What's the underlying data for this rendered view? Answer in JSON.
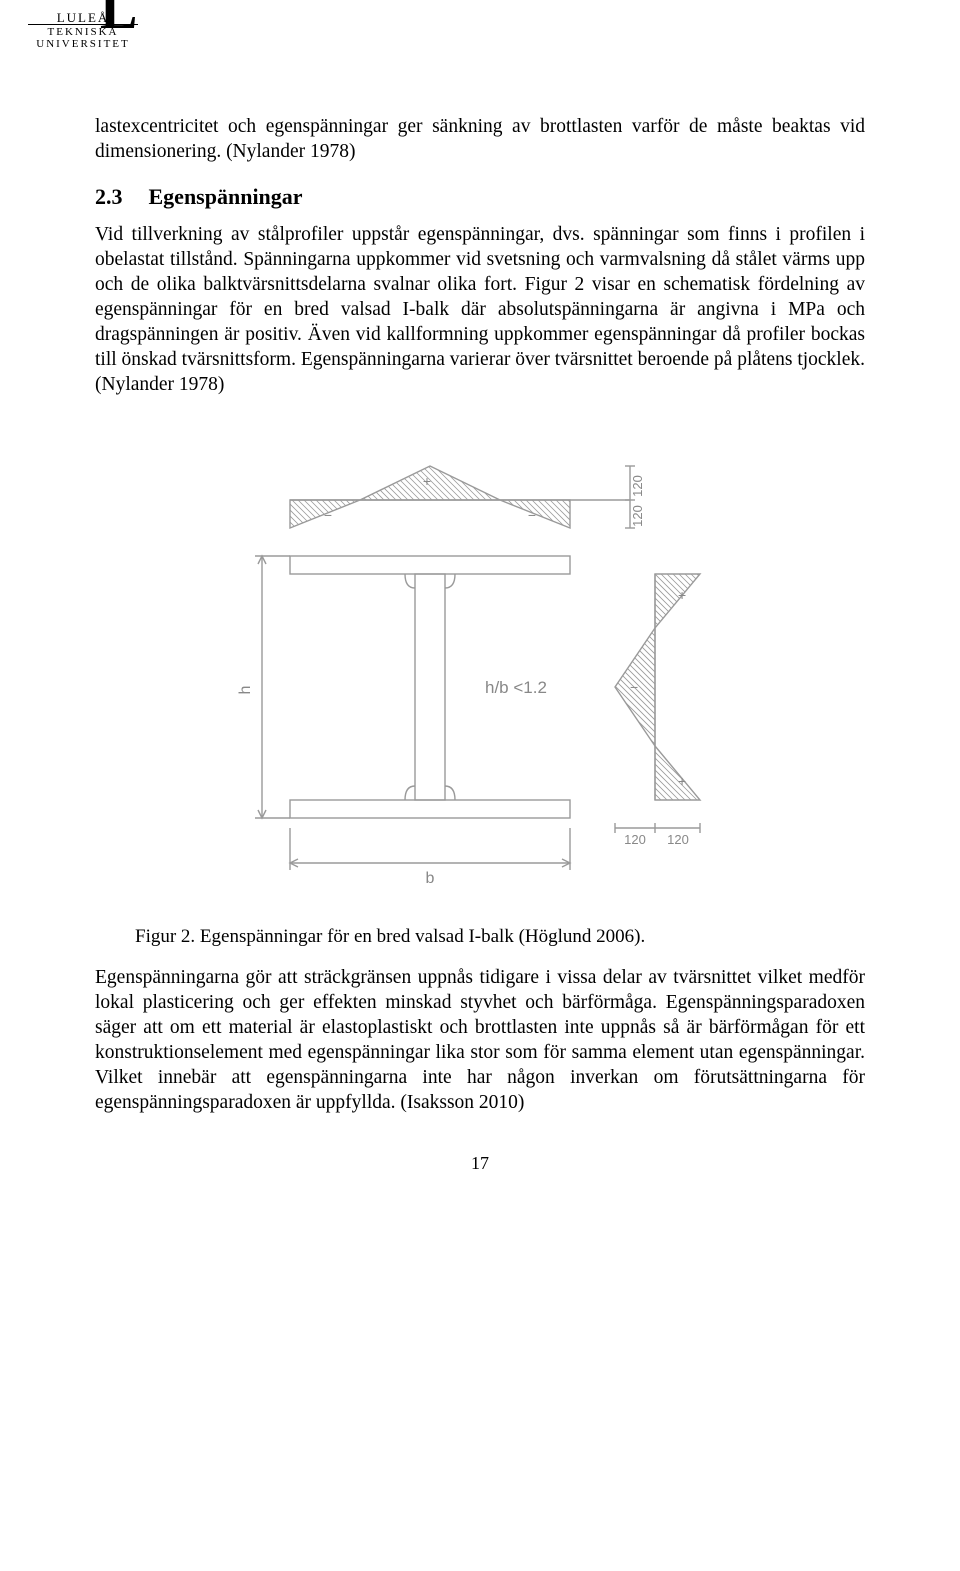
{
  "logo": {
    "line1": "LULEÅ",
    "line2": "TEKNISKA",
    "line3": "UNIVERSITET"
  },
  "para1": "lastexcentricitet och egenspänningar ger sänkning av brottlasten varför de måste beaktas vid dimensionering. (Nylander 1978)",
  "section": {
    "num": "2.3",
    "title": "Egenspänningar"
  },
  "para2": "Vid tillverkning av stålprofiler uppstår egenspänningar, dvs. spänningar som finns i profilen i obelastat tillstånd. Spänningarna uppkommer vid svetsning och varmvalsning då stålet värms upp och de olika balktvärsnittsdelarna svalnar olika fort. Figur 2 visar en schematisk fördelning av egenspänningar för en bred valsad I-balk där absolutspänningarna är angivna i MPa och dragspänningen är positiv. Även vid kallformning uppkommer egenspänningar då profiler bockas till önskad tvärsnittsform. Egenspänningarna varierar över tvärsnittet beroende på plåtens tjocklek. (Nylander 1978)",
  "figure": {
    "stroke": "#9a9a9a",
    "fill": "#a8a8a8",
    "text_color": "#888888",
    "h_label": "h",
    "b_label": "b",
    "ratio_label": "h/b <1.2",
    "top_vals": [
      "120",
      "120"
    ],
    "bot_vals": [
      "120",
      "120"
    ],
    "plus": "+",
    "minus": "−"
  },
  "caption": "Figur 2. Egenspänningar för en bred valsad I-balk (Höglund 2006).",
  "para3": "Egenspänningarna gör att sträckgränsen uppnås tidigare i vissa delar av tvärsnittet vilket medför lokal plasticering och ger effekten minskad styvhet och bärförmåga. Egenspänningsparadoxen säger att om ett material är elastoplastiskt och brottlasten inte uppnås så är bärförmågan för ett konstruktionselement med egenspänningar lika stor som för samma element utan egenspänningar. Vilket innebär att egenspänningarna inte har någon inverkan om förutsättningarna för egenspänningsparadoxen är uppfyllda. (Isaksson 2010)",
  "pagenum": "17"
}
